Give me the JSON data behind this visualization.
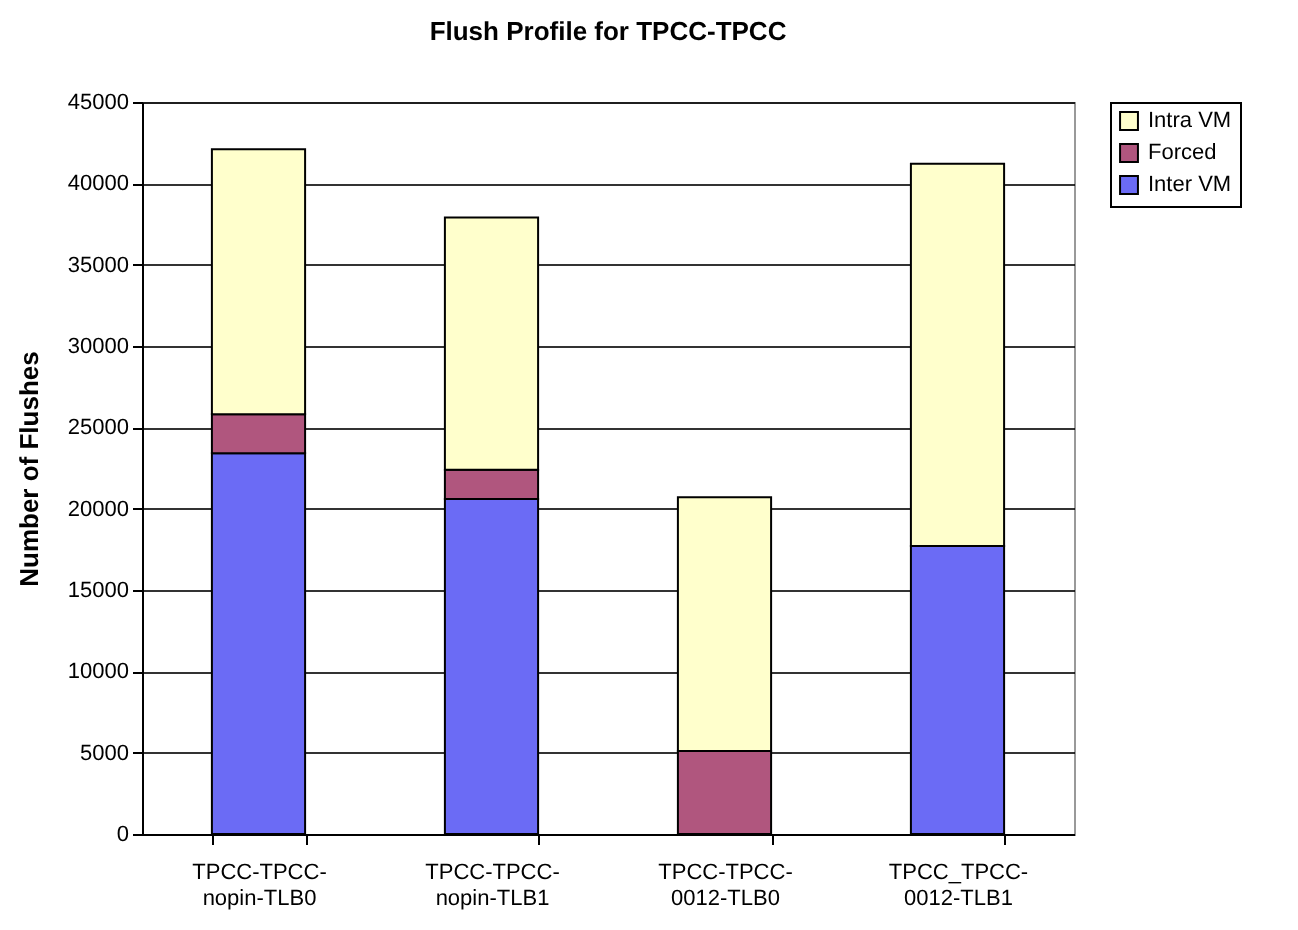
{
  "chart_data": {
    "type": "bar",
    "title": "Flush Profile for TPCC-TPCC",
    "ylabel": "Number of Flushes",
    "categories": [
      "TPCC-TPCC-nopin-TLB0",
      "TPCC-TPCC-nopin-TLB1",
      "TPCC-TPCC-0012-TLB0",
      "TPCC_TPCC-0012-TLB1"
    ],
    "stacked": true,
    "series": [
      {
        "name": "Inter VM",
        "color": "#6b6bf5",
        "values": [
          23400,
          20600,
          0,
          17700
        ]
      },
      {
        "name": "Forced",
        "color": "#b0567e",
        "values": [
          2400,
          1800,
          5100,
          0
        ]
      },
      {
        "name": "Intra VM",
        "color": "#ffffcc",
        "values": [
          16300,
          15500,
          15600,
          23500
        ]
      }
    ],
    "ylim": [
      0,
      45000
    ],
    "yticks": [
      0,
      5000,
      10000,
      15000,
      20000,
      25000,
      30000,
      35000,
      40000,
      45000
    ],
    "grid": "y",
    "legend": "right"
  }
}
